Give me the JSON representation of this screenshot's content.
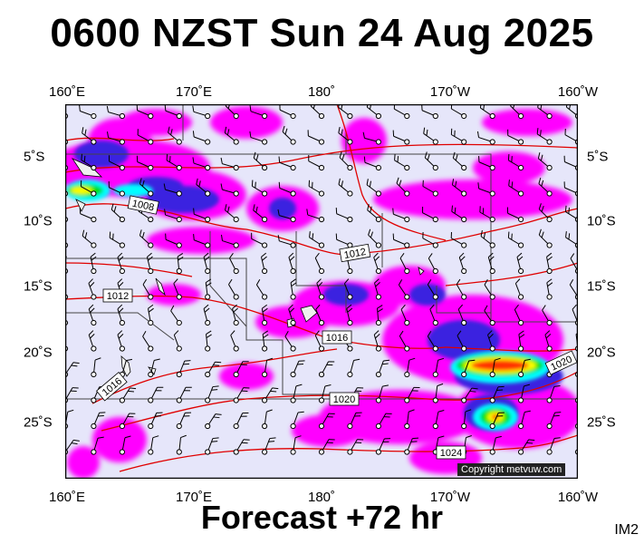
{
  "title": "0600 NZST Sun 24 Aug 2025",
  "footer": "Forecast +72 hr",
  "image_tag": "IM2",
  "copyright": "Copyright metvuw.com",
  "axes": {
    "lon_labels": [
      "160˚E",
      "170˚E",
      "180˚",
      "170˚W",
      "160˚W"
    ],
    "lat_labels": [
      "5˚S",
      "10˚S",
      "15˚S",
      "20˚S",
      "25˚S"
    ]
  },
  "isobars": [
    {
      "label": "1008"
    },
    {
      "label": "1012"
    },
    {
      "label": "1012"
    },
    {
      "label": "1016"
    },
    {
      "label": "1016"
    },
    {
      "label": "1020"
    },
    {
      "label": "1020"
    },
    {
      "label": "1024"
    }
  ],
  "colors": {
    "background": "#e6e6fa",
    "rain_light": "#ff00ff",
    "rain_mid": "#3a20e0",
    "rain_heavy": "#00ffff",
    "rain_heavier": "#00e000",
    "rain_extreme": "#ff3000",
    "isobar": "#e00000",
    "coast": "#000000"
  },
  "map_type": "rainfall and isobar forecast with wind barbs"
}
